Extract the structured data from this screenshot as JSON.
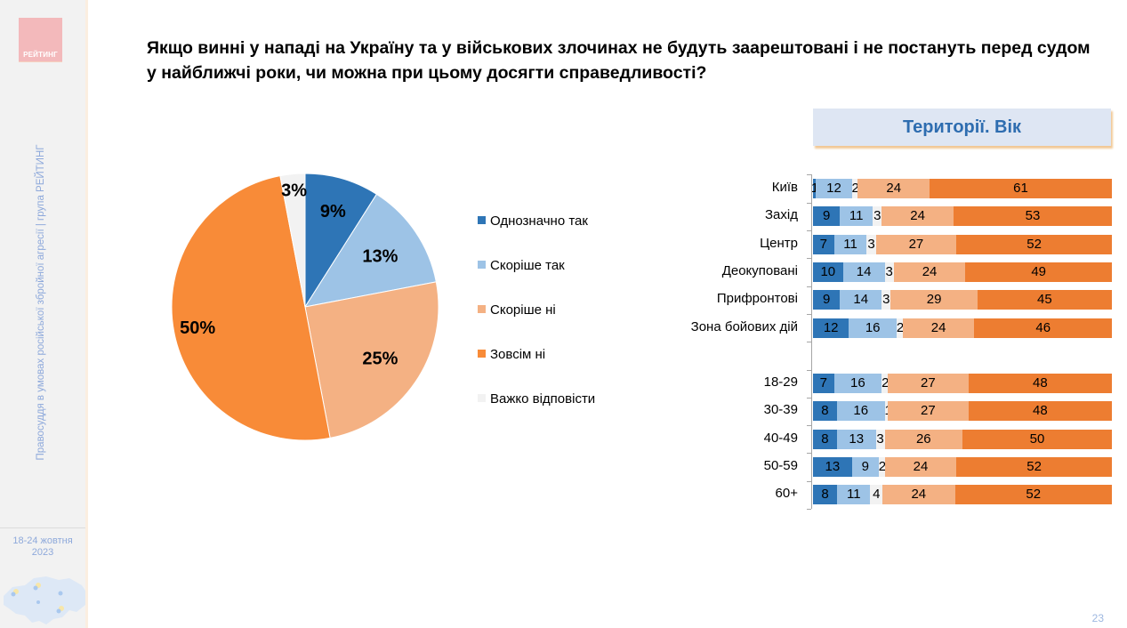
{
  "brand": {
    "logo_text": "РЕЙТИНГ"
  },
  "sidebar": {
    "vertical_text": "Правосуддя в умовах російської збройної агресії | група РЕЙТИНГ",
    "date_line1": "18-24 жовтня",
    "date_line2": "2023"
  },
  "page_number": "23",
  "title_line1": "Якщо винні у нападі на Україну та у військових злочинах не будуть заарештовані і не постануть перед судом",
  "title_line2": "у найближчі роки, чи можна при цьому досягти справедливості?",
  "colors": {
    "definitely_yes": "#2e75b6",
    "rather_yes": "#9dc3e6",
    "rather_no": "#f4b183",
    "definitely_no": "#ed7d31",
    "hard_to_say": "#f2f2f2",
    "pie_definitely_no": "#f88b38"
  },
  "chart_data": [
    {
      "type": "pie",
      "title": "",
      "labels": [
        "Однозначно так",
        "Скоріше так",
        "Скоріше ні",
        "Зовсім ні",
        "Важко відповісти"
      ],
      "values": [
        9,
        13,
        25,
        50,
        3
      ],
      "value_labels": [
        "9%",
        "13%",
        "25%",
        "50%",
        "3%"
      ],
      "legend": "right"
    },
    {
      "type": "bar",
      "orientation": "horizontal",
      "stacked": true,
      "title": "Території. Вік",
      "categories": [
        "Київ",
        "Захід",
        "Центр",
        "Деокуповані",
        "Прифронтові",
        "Зона бойових дій",
        "18-29",
        "30-39",
        "40-49",
        "50-59",
        "60+"
      ],
      "series": [
        {
          "name": "Однозначно так",
          "values": [
            1,
            9,
            7,
            10,
            9,
            12,
            7,
            8,
            8,
            13,
            8
          ]
        },
        {
          "name": "Скоріше так",
          "values": [
            12,
            11,
            11,
            14,
            14,
            16,
            16,
            16,
            13,
            9,
            11
          ]
        },
        {
          "name": "Важко відповісти",
          "values": [
            2,
            3,
            3,
            3,
            3,
            2,
            2,
            1,
            3,
            2,
            4
          ]
        },
        {
          "name": "Скоріше ні",
          "values": [
            24,
            24,
            27,
            24,
            29,
            24,
            27,
            27,
            26,
            24,
            24
          ]
        },
        {
          "name": "Зовсім ні",
          "values": [
            61,
            53,
            52,
            49,
            45,
            46,
            48,
            48,
            50,
            52,
            52
          ]
        }
      ],
      "groups": [
        {
          "name": "Території",
          "categories": [
            "Київ",
            "Захід",
            "Центр",
            "Деокуповані",
            "Прифронтові",
            "Зона бойових дій"
          ]
        },
        {
          "name": "Вік",
          "categories": [
            "18-29",
            "30-39",
            "40-49",
            "50-59",
            "60+"
          ]
        }
      ],
      "xlim": [
        0,
        100
      ],
      "grid": false
    }
  ]
}
